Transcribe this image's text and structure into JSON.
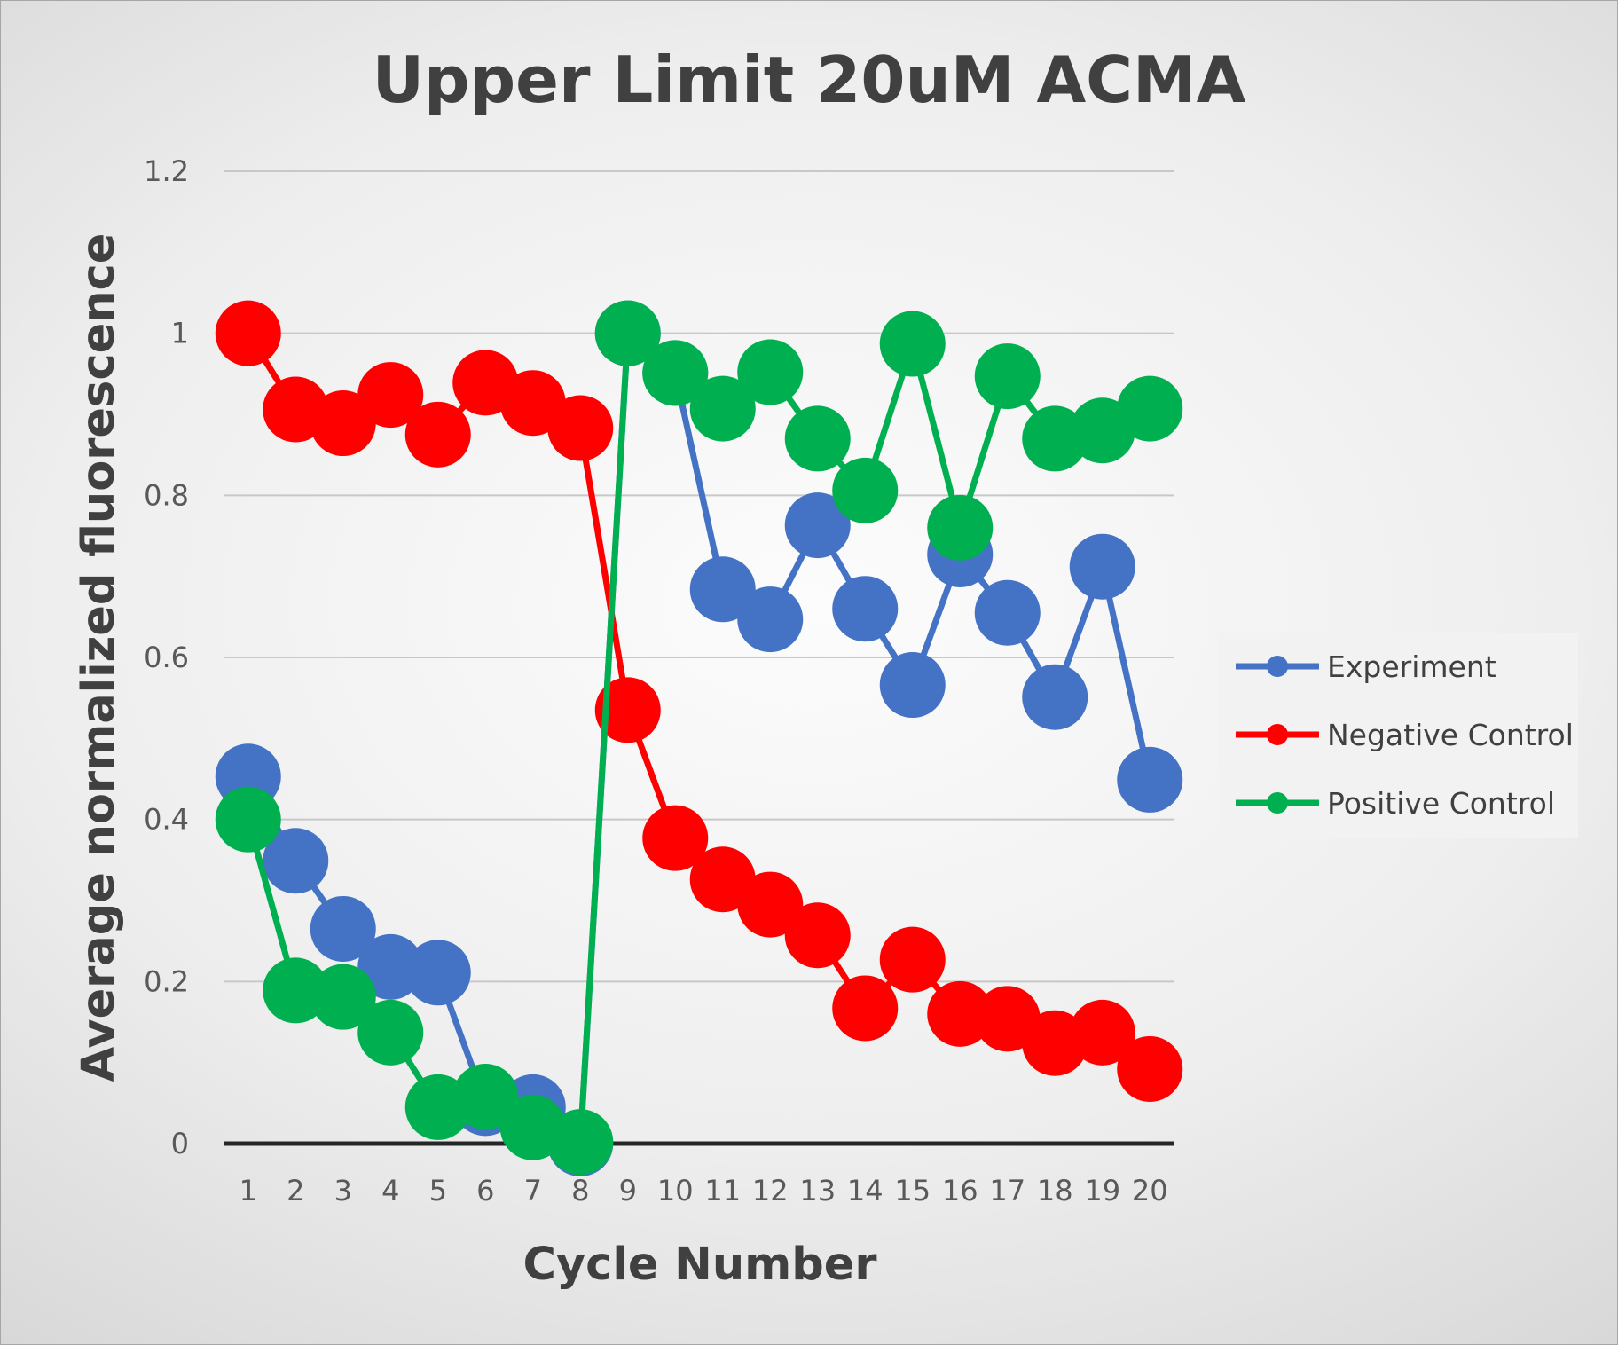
{
  "chart_data": {
    "type": "line",
    "title": "Upper Limit 20uM ACMA",
    "xlabel": "Cycle Number",
    "ylabel": "Average normalized fluorescence",
    "categories": [
      "1",
      "2",
      "3",
      "4",
      "5",
      "6",
      "7",
      "8",
      "9",
      "10",
      "11",
      "12",
      "13",
      "14",
      "15",
      "16",
      "17",
      "18",
      "19",
      "20"
    ],
    "ylim": [
      0,
      1.2
    ],
    "yticks": [
      "0",
      "0.2",
      "0.4",
      "0.6",
      "0.8",
      "1",
      "1.2"
    ],
    "grid": true,
    "legend_position": "right",
    "series": [
      {
        "name": "Experiment",
        "color": "#4472C4",
        "values": [
          0.453,
          0.349,
          0.265,
          0.218,
          0.211,
          0.05,
          0.045,
          0.0,
          1.0,
          0.951,
          0.684,
          0.647,
          0.763,
          0.66,
          0.566,
          0.727,
          0.655,
          0.551,
          0.712,
          0.449
        ]
      },
      {
        "name": "Negative Control",
        "color": "#FF0000",
        "values": [
          1.0,
          0.906,
          0.889,
          0.924,
          0.875,
          0.939,
          0.914,
          0.883,
          0.535,
          0.377,
          0.326,
          0.295,
          0.257,
          0.167,
          0.227,
          0.16,
          0.154,
          0.124,
          0.137,
          0.092
        ]
      },
      {
        "name": "Positive Control",
        "color": "#00B050",
        "values": [
          0.4,
          0.189,
          0.181,
          0.137,
          0.045,
          0.058,
          0.02,
          0.002,
          1.0,
          0.951,
          0.907,
          0.952,
          0.87,
          0.806,
          0.987,
          0.76,
          0.947,
          0.87,
          0.88,
          0.907
        ]
      }
    ]
  }
}
